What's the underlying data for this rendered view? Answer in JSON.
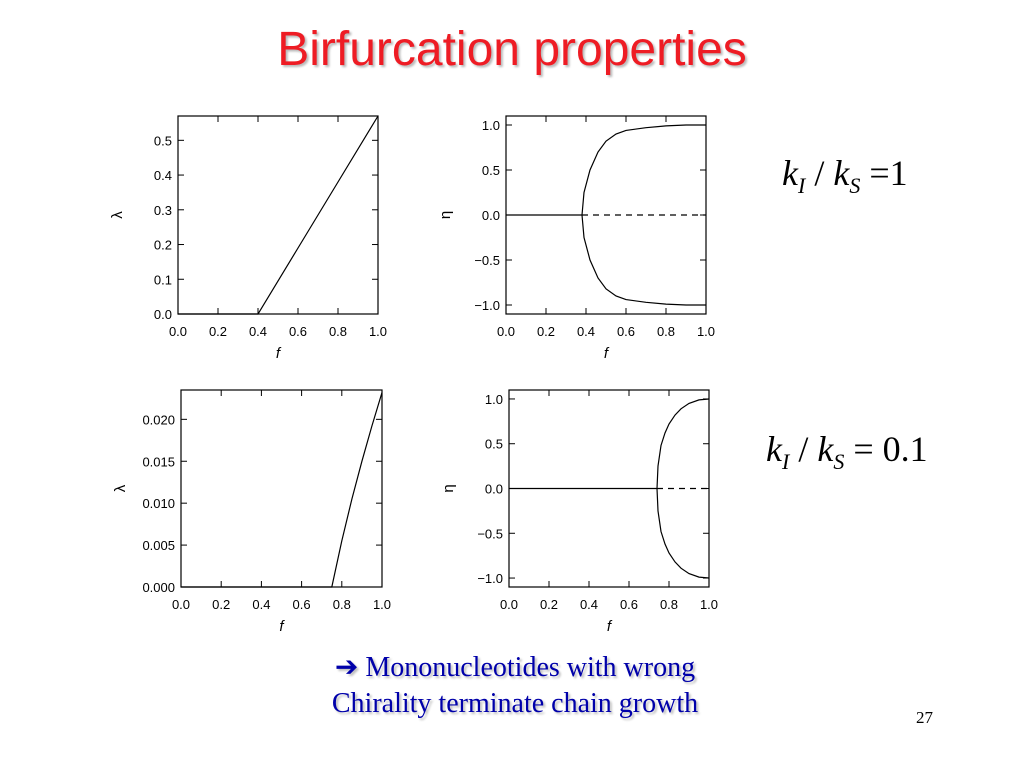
{
  "slide": {
    "title": "Birfurcation properties",
    "conclusion_line1": "➔ Mononucleotides with wrong",
    "conclusion_line2": "Chirality terminate chain growth",
    "page_number": "27",
    "title_color": "#ee1c24",
    "text_color": "#0000aa"
  },
  "annotations": [
    {
      "k": "k",
      "sub_i": "I",
      "slash": "/",
      "k2": "k",
      "sub_s": "S",
      "eq": "=",
      "value": "1"
    },
    {
      "k": "k",
      "sub_i": "I",
      "slash": "/",
      "k2": "k",
      "sub_s": "S",
      "eq": "=",
      "value": "0.1"
    }
  ],
  "chart_data": [
    {
      "type": "line",
      "xlabel": "f",
      "ylabel": "λ",
      "xlim": [
        0,
        1
      ],
      "ylim": [
        0,
        0.57
      ],
      "xticks": [
        0,
        0.2,
        0.4,
        0.6,
        0.8,
        1.0
      ],
      "xtick_labels": [
        "0.0",
        "0.2",
        "0.4",
        "0.6",
        "0.8",
        "1.0"
      ],
      "yticks": [
        0,
        0.1,
        0.2,
        0.3,
        0.4,
        0.5
      ],
      "ytick_labels": [
        "0.0",
        "0.1",
        "0.2",
        "0.3",
        "0.4",
        "0.5"
      ],
      "series": [
        {
          "x": [
            0,
            0.4,
            0.6,
            0.8,
            1.0
          ],
          "y": [
            0,
            0,
            0.19,
            0.38,
            0.57
          ],
          "style": "solid"
        }
      ]
    },
    {
      "type": "line",
      "xlabel": "f",
      "ylabel": "η",
      "xlim": [
        0,
        1
      ],
      "ylim": [
        -1.1,
        1.1
      ],
      "xticks": [
        0,
        0.2,
        0.4,
        0.6,
        0.8,
        1.0
      ],
      "xtick_labels": [
        "0.0",
        "0.2",
        "0.4",
        "0.6",
        "0.8",
        "1.0"
      ],
      "yticks": [
        -1.0,
        -0.5,
        0,
        0.5,
        1.0
      ],
      "ytick_labels": [
        "−1.0",
        "−0.5",
        "0.0",
        "0.5",
        "1.0"
      ],
      "series": [
        {
          "x": [
            0,
            0.38
          ],
          "y": [
            0,
            0
          ],
          "style": "solid"
        },
        {
          "x": [
            0.38,
            1.0
          ],
          "y": [
            0,
            0
          ],
          "style": "dashed"
        },
        {
          "x": [
            0.38,
            0.39,
            0.42,
            0.46,
            0.5,
            0.55,
            0.6,
            0.7,
            0.8,
            0.9,
            1.0
          ],
          "y": [
            0,
            0.25,
            0.5,
            0.7,
            0.82,
            0.9,
            0.94,
            0.97,
            0.99,
            1.0,
            1.0
          ],
          "style": "solid"
        },
        {
          "x": [
            0.38,
            0.39,
            0.42,
            0.46,
            0.5,
            0.55,
            0.6,
            0.7,
            0.8,
            0.9,
            1.0
          ],
          "y": [
            0,
            -0.25,
            -0.5,
            -0.7,
            -0.82,
            -0.9,
            -0.94,
            -0.97,
            -0.99,
            -1.0,
            -1.0
          ],
          "style": "solid"
        }
      ]
    },
    {
      "type": "line",
      "xlabel": "f",
      "ylabel": "λ",
      "xlim": [
        0,
        1
      ],
      "ylim": [
        0,
        0.0235
      ],
      "xticks": [
        0,
        0.2,
        0.4,
        0.6,
        0.8,
        1.0
      ],
      "xtick_labels": [
        "0.0",
        "0.2",
        "0.4",
        "0.6",
        "0.8",
        "1.0"
      ],
      "yticks": [
        0,
        0.005,
        0.01,
        0.015,
        0.02
      ],
      "ytick_labels": [
        "0.000",
        "0.005",
        "0.010",
        "0.015",
        "0.020"
      ],
      "series": [
        {
          "x": [
            0,
            0.75,
            0.8,
            0.85,
            0.9,
            0.95,
            1.0
          ],
          "y": [
            0,
            0,
            0.0055,
            0.0105,
            0.015,
            0.0192,
            0.0232
          ],
          "style": "solid"
        }
      ]
    },
    {
      "type": "line",
      "xlabel": "f",
      "ylabel": "η",
      "xlim": [
        0,
        1
      ],
      "ylim": [
        -1.1,
        1.1
      ],
      "xticks": [
        0,
        0.2,
        0.4,
        0.6,
        0.8,
        1.0
      ],
      "xtick_labels": [
        "0.0",
        "0.2",
        "0.4",
        "0.6",
        "0.8",
        "1.0"
      ],
      "yticks": [
        -1.0,
        -0.5,
        0,
        0.5,
        1.0
      ],
      "ytick_labels": [
        "−1.0",
        "−0.5",
        "0.0",
        "0.5",
        "1.0"
      ],
      "series": [
        {
          "x": [
            0,
            0.74
          ],
          "y": [
            0,
            0
          ],
          "style": "solid"
        },
        {
          "x": [
            0.74,
            1.0
          ],
          "y": [
            0,
            0
          ],
          "style": "dashed"
        },
        {
          "x": [
            0.74,
            0.745,
            0.76,
            0.78,
            0.8,
            0.83,
            0.86,
            0.9,
            0.95,
            1.0
          ],
          "y": [
            0,
            0.25,
            0.48,
            0.62,
            0.72,
            0.82,
            0.89,
            0.95,
            0.99,
            1.0
          ],
          "style": "solid"
        },
        {
          "x": [
            0.74,
            0.745,
            0.76,
            0.78,
            0.8,
            0.83,
            0.86,
            0.9,
            0.95,
            1.0
          ],
          "y": [
            0,
            -0.25,
            -0.48,
            -0.62,
            -0.72,
            -0.82,
            -0.89,
            -0.95,
            -0.99,
            -1.0
          ],
          "style": "solid"
        }
      ]
    }
  ]
}
